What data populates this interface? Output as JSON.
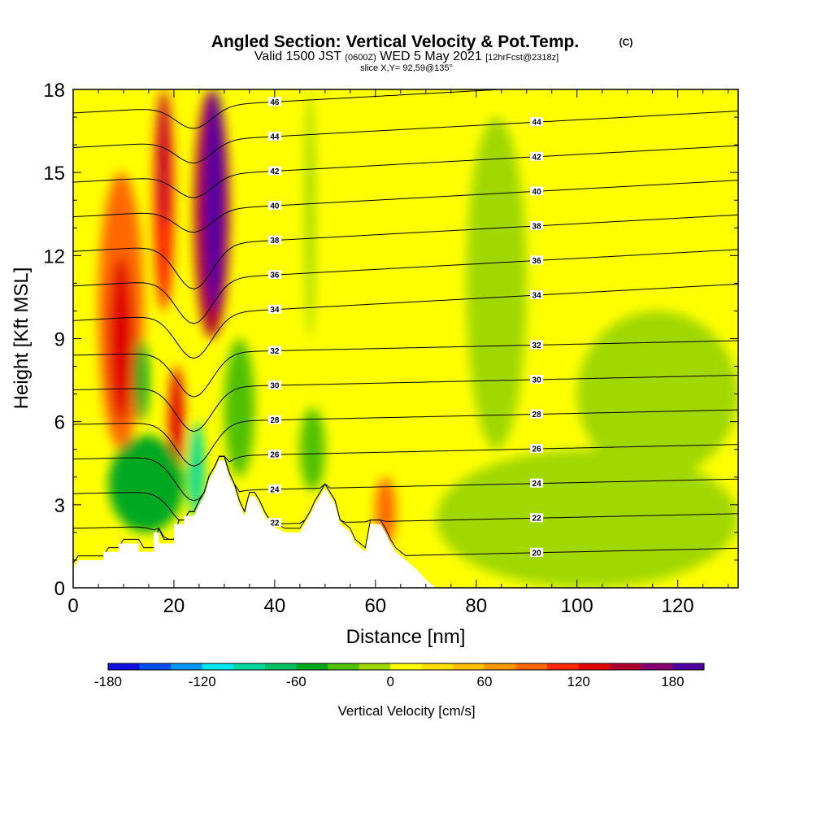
{
  "title": {
    "main": "Angled Section: Vertical Velocity & Pot.Temp.",
    "main_suffix": "(C)",
    "valid_prefix": "Valid 1500 JST",
    "valid_utc": "(0600Z)",
    "valid_date": "WED 5 May 2021",
    "forecast": "[12hrFcst@2318z]",
    "slice": "slice X,Y= 92,59@135°"
  },
  "chart_data": {
    "type": "heatmap",
    "xlabel": "Distance [nm]",
    "ylabel": "Height [Kft MSL]",
    "xlim": [
      0,
      132
    ],
    "ylim": [
      0,
      18
    ],
    "x_ticks": [
      "0",
      "20",
      "40",
      "60",
      "80",
      "100",
      "120"
    ],
    "y_ticks": [
      "0",
      "3",
      "6",
      "9",
      "12",
      "15",
      "18"
    ],
    "colorbar": {
      "label": "Vertical Velocity [cm/s]",
      "min": -180,
      "max": 200,
      "step": 20,
      "tick_labels": [
        "-180",
        "-120",
        "-60",
        "0",
        "60",
        "120",
        "180"
      ],
      "colors": [
        "#1010e0",
        "#0050f0",
        "#0098f0",
        "#00e8f0",
        "#00d8a0",
        "#00c060",
        "#00a820",
        "#50c000",
        "#a0d800",
        "#ffff00",
        "#ffe000",
        "#ffc000",
        "#ff9800",
        "#ff6800",
        "#ff2800",
        "#e00000",
        "#b00030",
        "#880070",
        "#5000a0"
      ]
    },
    "terrain_kft": [
      [
        0,
        0.7
      ],
      [
        1,
        1
      ],
      [
        6,
        1
      ],
      [
        6,
        1.3
      ],
      [
        9,
        1.3
      ],
      [
        9,
        1.6
      ],
      [
        13,
        1.6
      ],
      [
        13,
        1.3
      ],
      [
        16,
        1.3
      ],
      [
        16,
        2
      ],
      [
        17,
        2
      ],
      [
        17,
        1.6
      ],
      [
        20,
        1.6
      ],
      [
        20,
        2.3
      ],
      [
        22,
        2.3
      ],
      [
        22,
        2.6
      ],
      [
        24,
        2.6
      ],
      [
        25,
        3
      ],
      [
        26,
        3.3
      ],
      [
        27,
        3.9
      ],
      [
        28,
        4.2
      ],
      [
        29,
        4.6
      ],
      [
        30,
        4.6
      ],
      [
        31,
        4
      ],
      [
        32,
        3.6
      ],
      [
        33,
        3
      ],
      [
        34,
        2.6
      ],
      [
        35,
        3.3
      ],
      [
        36,
        3.3
      ],
      [
        37,
        3
      ],
      [
        38,
        2.6
      ],
      [
        39,
        2.3
      ],
      [
        42,
        2
      ],
      [
        45,
        2
      ],
      [
        46,
        2.3
      ],
      [
        47,
        2.6
      ],
      [
        48,
        3
      ],
      [
        49,
        3.3
      ],
      [
        50,
        3.6
      ],
      [
        51,
        3.3
      ],
      [
        52,
        3
      ],
      [
        53,
        2.3
      ],
      [
        55,
        2
      ],
      [
        56,
        1.6
      ],
      [
        58,
        1.3
      ],
      [
        59,
        2.3
      ],
      [
        61,
        2.3
      ],
      [
        62,
        2
      ],
      [
        63,
        1.6
      ],
      [
        64,
        1.3
      ],
      [
        66,
        1
      ],
      [
        68,
        0.7
      ],
      [
        70,
        0.3
      ],
      [
        72,
        0
      ],
      [
        132,
        0
      ]
    ],
    "velocity_field": [
      {
        "x": [
          5,
          14
        ],
        "y": [
          5,
          15
        ],
        "value": 80
      },
      {
        "x": [
          7,
          12
        ],
        "y": [
          6,
          12
        ],
        "value": 120
      },
      {
        "x": [
          16,
          20
        ],
        "y": [
          10,
          18
        ],
        "value": 100
      },
      {
        "x": [
          17,
          19
        ],
        "y": [
          13,
          18
        ],
        "value": 140
      },
      {
        "x": [
          19,
          22
        ],
        "y": [
          4,
          8
        ],
        "value": 120
      },
      {
        "x": [
          24,
          31
        ],
        "y": [
          9,
          18
        ],
        "value": 140
      },
      {
        "x": [
          26,
          30
        ],
        "y": [
          10,
          18
        ],
        "value": 180
      },
      {
        "x": [
          23,
          26
        ],
        "y": [
          2.5,
          6
        ],
        "value": -100
      },
      {
        "x": [
          7,
          22
        ],
        "y": [
          2,
          5.5
        ],
        "value": -60
      },
      {
        "x": [
          12,
          15
        ],
        "y": [
          6,
          9
        ],
        "value": -60
      },
      {
        "x": [
          30,
          36
        ],
        "y": [
          4,
          9
        ],
        "value": -40
      },
      {
        "x": [
          45,
          50
        ],
        "y": [
          3.5,
          6.5
        ],
        "value": -40
      },
      {
        "x": [
          46,
          48
        ],
        "y": [
          9,
          18
        ],
        "value": -20
      },
      {
        "x": [
          60,
          64
        ],
        "y": [
          1.5,
          4
        ],
        "value": 80
      },
      {
        "x": [
          72,
          132
        ],
        "y": [
          0,
          5
        ],
        "value": -20
      },
      {
        "x": [
          78,
          90
        ],
        "y": [
          5,
          17
        ],
        "value": -20
      },
      {
        "x": [
          100,
          132
        ],
        "y": [
          4,
          10
        ],
        "value": -20
      }
    ],
    "contours": {
      "label": "Pot.Temp.",
      "levels": [
        20,
        22,
        24,
        26,
        28,
        30,
        32,
        34,
        36,
        38,
        40,
        42,
        44,
        46
      ]
    }
  }
}
